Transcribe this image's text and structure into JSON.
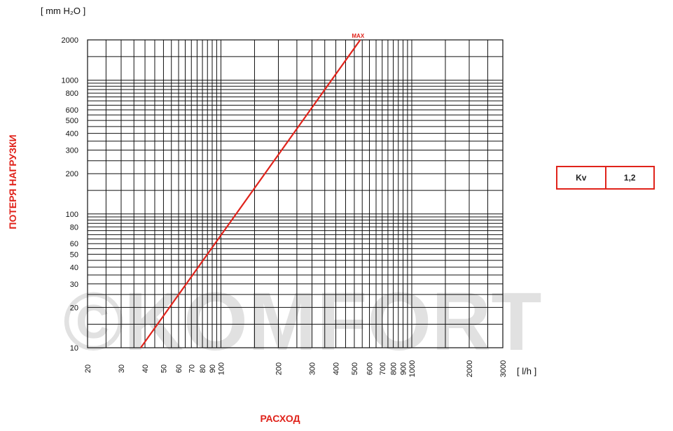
{
  "chart_data": {
    "type": "line",
    "title": "",
    "y_unit_label": "[ mm H₂O ]",
    "x_unit_label": "[ l/h ]",
    "ylabel": "ПОТЕРЯ НАГРУЗКИ",
    "xlabel": "РАСХОД",
    "x_scale": "log",
    "y_scale": "log",
    "xlim": [
      20,
      3000
    ],
    "ylim": [
      10,
      2000
    ],
    "x_ticks": [
      20,
      30,
      40,
      50,
      60,
      70,
      80,
      90,
      100,
      200,
      300,
      400,
      500,
      600,
      700,
      800,
      900,
      1000,
      2000,
      3000
    ],
    "y_ticks": [
      10,
      20,
      30,
      40,
      50,
      60,
      80,
      100,
      200,
      300,
      400,
      500,
      600,
      800,
      1000,
      2000
    ],
    "grid": true,
    "series": [
      {
        "x": [
          38,
          537
        ],
        "y": [
          10,
          2000
        ],
        "color": "#e0231b"
      }
    ],
    "annotations": [
      {
        "text": "MAX",
        "x": 537,
        "y": 2000,
        "color": "#e0231b"
      }
    ],
    "watermark": "©KOMFORT"
  },
  "kv_table": {
    "label": "Kv",
    "value": "1,2",
    "border_color": "#e0231b"
  },
  "colors": {
    "accent": "#e0231b",
    "grid": "#111111"
  }
}
